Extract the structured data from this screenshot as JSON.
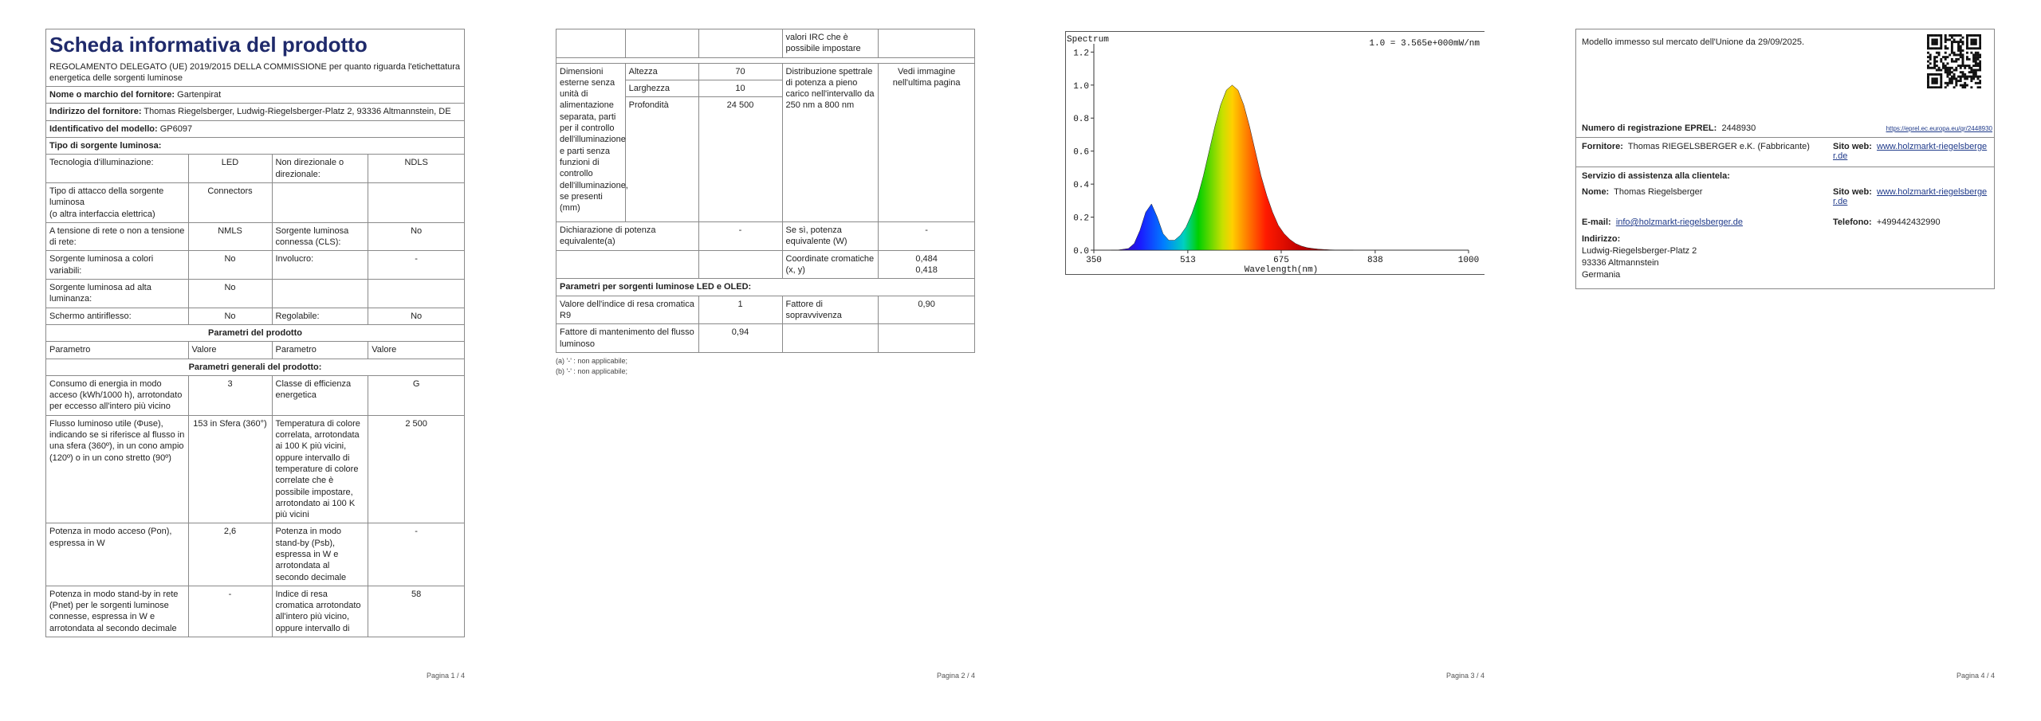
{
  "page1": {
    "title": "Scheda informativa del prodotto",
    "subtitle": "REGOLAMENTO DELEGATO (UE) 2019/2015 DELLA COMMISSIONE per quanto riguarda l'etichettatura energetica delle sorgenti luminose",
    "supplier_label": "Nome o marchio del fornitore:",
    "supplier": "Gartenpirat",
    "address_label": "Indirizzo del fornitore:",
    "address": "Thomas Riegelsberger, Ludwig-Riegelsberger-Platz 2, 93336 Altmannstein, DE",
    "model_label": "Identificativo del modello:",
    "model": "GP6097",
    "source_type": "Tipo di sorgente luminosa:",
    "source_rows": [
      [
        "Tecnologia d'illuminazione:",
        "LED",
        "Non direzionale o direzionale:",
        "NDLS"
      ],
      [
        "Tipo di attacco della sorgente luminosa\n(o altra interfaccia elettrica)",
        "Connectors"
      ],
      [
        "A tensione di rete o non a tensione di rete:",
        "NMLS",
        "Sorgente luminosa connessa (CLS):",
        "No"
      ],
      [
        "Sorgente luminosa a colori variabili:",
        "No",
        "Involucro:",
        "-"
      ],
      [
        "Sorgente luminosa ad alta luminanza:",
        "No"
      ],
      [
        "Schermo antiriflesso:",
        "No",
        "Regolabile:",
        "No"
      ]
    ],
    "params_title": "Parametri del prodotto",
    "params_header": [
      "Parametro",
      "Valore",
      "Parametro",
      "Valore"
    ],
    "general_title": "Parametri generali del prodotto:",
    "general_rows": [
      [
        "Consumo di energia in modo acceso (kWh/1000 h), arrotondato per eccesso all'intero più vicino",
        "3",
        "Classe di efficienza energetica",
        "G"
      ],
      [
        "Flusso luminoso utile (Φuse), indicando se si riferisce al flusso in una sfera (360º), in un cono ampio (120º) o in un cono stretto (90º)",
        "153 in Sfera (360°)",
        "Temperatura di colore correlata, arrotondata ai 100 K più vicini, oppure intervallo di temperature di colore correlate che è possibile impostare, arrotondato ai 100 K più vicini",
        "2 500"
      ],
      [
        "Potenza in modo acceso (Pon), espressa in W",
        "2,6",
        "Potenza in modo stand-by (Psb), espressa in W e arrotondata al secondo decimale",
        "-"
      ],
      [
        "Potenza in modo stand-by in rete (Pnet) per le sorgenti luminose connesse, espressa in W e arrotondata al secondo decimale",
        "-",
        "Indice di resa cromatica arrotondato all'intero più vicino, oppure intervallo di",
        "58"
      ]
    ],
    "page_no": "Pagina 1 / 4"
  },
  "page2": {
    "continuation": "valori IRC che è possibile impostare",
    "dims_label": "Dimensioni esterne senza unità di alimentazione separata, parti per il controllo dell'illuminazione e parti senza funzioni di controllo dell'illuminazione, se presenti (mm)",
    "dims": [
      [
        "Altezza",
        "70"
      ],
      [
        "Larghezza",
        "10"
      ],
      [
        "Profondità",
        "24 500"
      ]
    ],
    "spectral_label": "Distribuzione spettrale di potenza a pieno carico nell'intervallo da 250 nm a 800 nm",
    "spectral_value": "Vedi immagine nell'ultima pagina",
    "equiv_label": "Dichiarazione di potenza equivalente(a)",
    "equiv_value": "-",
    "equiv_w_label": "Se sì, potenza equivalente (W)",
    "equiv_w_value": "-",
    "chroma_label": "Coordinate cromatiche (x, y)",
    "chroma_value": "0,484\n0,418",
    "led_title": "Parametri per sorgenti luminose LED e OLED:",
    "led_rows": [
      [
        "Valore dell'indice di resa cromatica R9",
        "1",
        "Fattore di sopravvivenza",
        "0,90"
      ],
      [
        "Fattore di mantenimento del flusso luminoso",
        "0,94"
      ]
    ],
    "footnotes": [
      "(a) '-' : non applicabile;",
      "(b) '-' : non applicabile;"
    ],
    "page_no": "Pagina 2 / 4"
  },
  "chart_data": {
    "type": "area",
    "title": "Spectrum",
    "annotation": "1.0 = 3.565e+000mW/nm",
    "x_label": "Wavelength(nm)",
    "x": [
      380,
      390,
      400,
      410,
      420,
      430,
      440,
      450,
      460,
      470,
      480,
      490,
      500,
      510,
      520,
      530,
      540,
      550,
      560,
      570,
      580,
      590,
      600,
      610,
      620,
      630,
      640,
      650,
      660,
      670,
      680,
      690,
      700,
      710,
      720,
      730,
      740,
      750,
      760,
      770,
      780,
      790,
      800
    ],
    "values": [
      0,
      0,
      0.005,
      0.01,
      0.04,
      0.12,
      0.23,
      0.28,
      0.2,
      0.1,
      0.06,
      0.06,
      0.09,
      0.14,
      0.22,
      0.32,
      0.45,
      0.6,
      0.75,
      0.88,
      0.97,
      1.0,
      0.97,
      0.88,
      0.75,
      0.6,
      0.45,
      0.33,
      0.23,
      0.15,
      0.1,
      0.065,
      0.04,
      0.025,
      0.015,
      0.01,
      0.006,
      0.004,
      0.002,
      0.001,
      0,
      0,
      0
    ],
    "xlim": [
      350,
      1000
    ],
    "ylim": [
      0,
      1.25
    ],
    "xticks": [
      350,
      513,
      675,
      838,
      1000
    ],
    "yticks": [
      {
        "value": 0,
        "label": "0.0"
      },
      0.2,
      0.4,
      0.6,
      0.8,
      {
        "value": 1,
        "label": "1.0"
      },
      1.2
    ],
    "page_no": "Pagina 3 / 4"
  },
  "page4": {
    "market": "Modello immesso sul mercato dell'Unione da 29/09/2025.",
    "eprel_label": "Numero di registrazione EPREL:",
    "eprel": "2448930",
    "eprel_url": "https://eprel.ec.europa.eu/qr/2448930",
    "supplier_label": "Fornitore:",
    "supplier": "Thomas RIEGELSBERGER e.K. (Fabbricante)",
    "web_label": "Sito web:",
    "web": "www.holzmarkt-riegelsberger.de",
    "service_title": "Servizio di assistenza alla clientela:",
    "name_label": "Nome:",
    "name": "Thomas Riegelsberger",
    "web2_label": "Sito web:",
    "web2": "www.holzmarkt-riegelsberger.de",
    "email_label": "E-mail:",
    "email": "info@holzmarkt-riegelsberger.de",
    "phone_label": "Telefono:",
    "phone": "+499442432990",
    "address_label": "Indirizzo:",
    "address": [
      "Ludwig-Riegelsberger-Platz 2",
      "93336 Altmannstein",
      "Germania"
    ],
    "page_no": "Pagina 4 / 4"
  }
}
